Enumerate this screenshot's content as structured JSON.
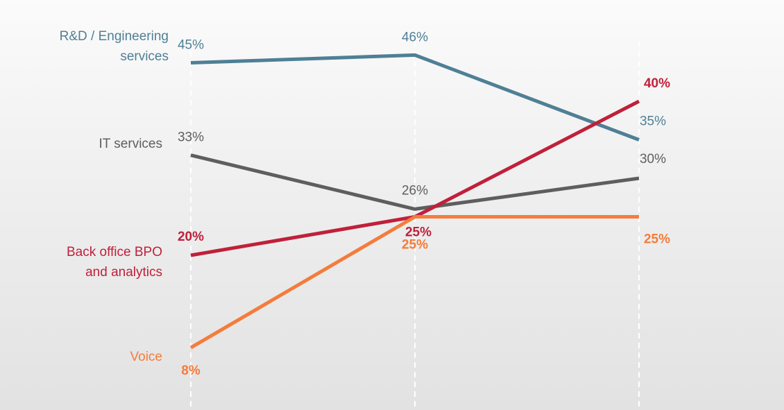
{
  "chart_data": {
    "type": "line",
    "categories": [
      "",
      "",
      ""
    ],
    "ylim": [
      0,
      50
    ],
    "grid": "vertical-dashed",
    "legend": "none",
    "series": [
      {
        "name": "R&D / Engineering services",
        "name_lines": [
          "R&D / Engineering",
          "services"
        ],
        "values": [
          45,
          46,
          35
        ],
        "labels": [
          "45%",
          "46%",
          "35%"
        ],
        "color": "#4f7f96",
        "bold_labels": false
      },
      {
        "name": "IT services",
        "name_lines": [
          "IT services"
        ],
        "values": [
          33,
          26,
          30
        ],
        "labels": [
          "33%",
          "26%",
          "30%"
        ],
        "color": "#5e5e5e",
        "bold_labels": false
      },
      {
        "name": "Back office BPO and analytics",
        "name_lines": [
          "Back office BPO",
          "and analytics"
        ],
        "values": [
          20,
          25,
          40
        ],
        "labels": [
          "20%",
          "25%",
          "40%"
        ],
        "color": "#c0203a",
        "bold_labels": true
      },
      {
        "name": "Voice",
        "name_lines": [
          "Voice"
        ],
        "values": [
          8,
          25,
          25
        ],
        "labels": [
          "8%",
          "25%",
          "25%"
        ],
        "color": "#f47c3c",
        "bold_labels": true
      }
    ]
  }
}
